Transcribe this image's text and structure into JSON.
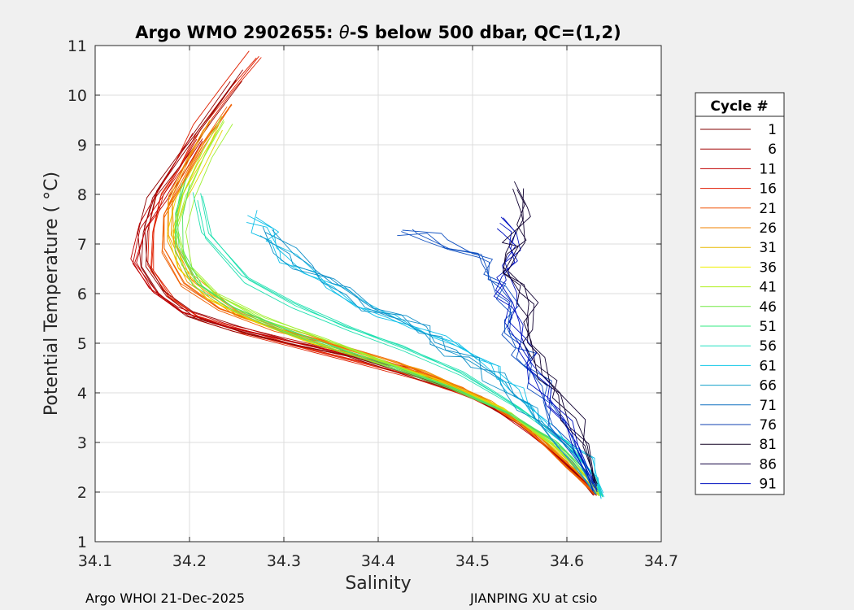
{
  "chart_data": {
    "type": "line",
    "title_prefix": "Argo WMO 2902655: ",
    "title_theta": "θ",
    "title_suffix": "-S below 500 dbar,  QC=(1,2)",
    "xlabel": "Salinity",
    "ylabel": "Potential Temperature ( °C)",
    "xlim": [
      34.1,
      34.7
    ],
    "ylim": [
      1,
      11
    ],
    "xticks": [
      34.1,
      34.2,
      34.3,
      34.4,
      34.5,
      34.6,
      34.7
    ],
    "yticks": [
      1,
      2,
      3,
      4,
      5,
      6,
      7,
      8,
      9,
      10,
      11
    ],
    "grid": true,
    "legend": {
      "title": "Cycle #",
      "position": "right",
      "entries": [
        {
          "label": "1",
          "color": "#800000"
        },
        {
          "label": "6",
          "color": "#a00000"
        },
        {
          "label": "11",
          "color": "#c00000"
        },
        {
          "label": "16",
          "color": "#e01a00"
        },
        {
          "label": "21",
          "color": "#f05000"
        },
        {
          "label": "26",
          "color": "#f08000"
        },
        {
          "label": "31",
          "color": "#e8b800"
        },
        {
          "label": "36",
          "color": "#f0f000"
        },
        {
          "label": "41",
          "color": "#b0f020"
        },
        {
          "label": "46",
          "color": "#70e840"
        },
        {
          "label": "51",
          "color": "#30e880"
        },
        {
          "label": "56",
          "color": "#20e0c0"
        },
        {
          "label": "61",
          "color": "#10c8e8"
        },
        {
          "label": "66",
          "color": "#10a0c8"
        },
        {
          "label": "71",
          "color": "#1070c0"
        },
        {
          "label": "76",
          "color": "#1040b0"
        },
        {
          "label": "81",
          "color": "#100020"
        },
        {
          "label": "86",
          "color": "#100040"
        },
        {
          "label": "91",
          "color": "#0010c0"
        }
      ]
    },
    "series": [
      {
        "name": "red-warm",
        "color": "#e02000",
        "s": [
          34.27,
          34.24,
          34.21,
          34.19,
          34.17,
          34.16,
          34.16,
          34.18,
          34.21,
          34.26,
          34.32,
          34.38,
          34.44,
          34.5,
          34.56,
          34.6,
          34.63
        ],
        "t": [
          10.8,
          10.1,
          9.3,
          8.6,
          8.0,
          7.3,
          6.5,
          5.9,
          5.5,
          5.2,
          4.9,
          4.6,
          4.3,
          3.9,
          3.3,
          2.6,
          1.95
        ]
      },
      {
        "name": "dark-red",
        "color": "#900000",
        "s": [
          34.25,
          34.22,
          34.19,
          34.16,
          34.15,
          34.15,
          34.17,
          34.2,
          34.25,
          34.31,
          34.37,
          34.43,
          34.5,
          34.56,
          34.6,
          34.63
        ],
        "t": [
          10.4,
          9.6,
          8.8,
          8.0,
          7.3,
          6.6,
          6.0,
          5.6,
          5.3,
          5.0,
          4.75,
          4.4,
          3.95,
          3.3,
          2.55,
          1.95
        ]
      },
      {
        "name": "red",
        "color": "#c00000",
        "s": [
          34.21,
          34.19,
          34.17,
          34.15,
          34.14,
          34.16,
          34.19,
          34.24,
          34.3,
          34.37,
          34.44,
          34.51,
          34.56,
          34.61,
          34.63
        ],
        "t": [
          9.2,
          8.6,
          8.0,
          7.4,
          6.7,
          6.1,
          5.7,
          5.4,
          5.1,
          4.8,
          4.45,
          3.9,
          3.2,
          2.4,
          1.97
        ]
      },
      {
        "name": "orange",
        "color": "#f06000",
        "s": [
          34.24,
          34.21,
          34.19,
          34.17,
          34.17,
          34.19,
          34.23,
          34.29,
          34.35,
          34.42,
          34.49,
          34.55,
          34.6,
          34.63
        ],
        "t": [
          9.8,
          9.0,
          8.3,
          7.6,
          6.9,
          6.2,
          5.7,
          5.3,
          5.0,
          4.6,
          4.1,
          3.4,
          2.5,
          1.96
        ]
      },
      {
        "name": "amber",
        "color": "#f09000",
        "s": [
          34.22,
          34.2,
          34.18,
          34.18,
          34.2,
          34.25,
          34.31,
          34.38,
          34.45,
          34.52,
          34.57,
          34.61,
          34.635
        ],
        "t": [
          9.4,
          8.7,
          7.9,
          7.1,
          6.3,
          5.6,
          5.2,
          4.8,
          4.4,
          3.8,
          3.1,
          2.4,
          1.95
        ]
      },
      {
        "name": "yellow",
        "color": "#e8d000",
        "s": [
          34.23,
          34.21,
          34.19,
          34.18,
          34.19,
          34.22,
          34.27,
          34.33,
          34.4,
          34.47,
          34.53,
          34.58,
          34.62,
          34.635
        ],
        "t": [
          9.3,
          8.6,
          7.9,
          7.2,
          6.5,
          5.9,
          5.4,
          5.0,
          4.6,
          4.2,
          3.7,
          3.0,
          2.3,
          1.93
        ]
      },
      {
        "name": "lime",
        "color": "#a0f030",
        "s": [
          34.24,
          34.22,
          34.2,
          34.19,
          34.2,
          34.23,
          34.28,
          34.34,
          34.41,
          34.48,
          34.54,
          34.59,
          34.62,
          34.636
        ],
        "t": [
          9.5,
          8.8,
          8.0,
          7.3,
          6.6,
          6.0,
          5.5,
          5.1,
          4.6,
          4.1,
          3.6,
          2.9,
          2.3,
          1.92
        ]
      },
      {
        "name": "green",
        "color": "#50e060",
        "s": [
          34.2,
          34.19,
          34.19,
          34.21,
          34.25,
          34.3,
          34.36,
          34.42,
          34.48,
          34.54,
          34.59,
          34.62,
          34.636
        ],
        "t": [
          8.3,
          7.6,
          6.9,
          6.2,
          5.7,
          5.3,
          4.9,
          4.5,
          4.1,
          3.6,
          3.0,
          2.4,
          1.92
        ]
      },
      {
        "name": "teal",
        "color": "#20e0b0",
        "s": [
          34.21,
          34.22,
          34.26,
          34.31,
          34.37,
          34.43,
          34.49,
          34.55,
          34.6,
          34.63,
          34.637
        ],
        "t": [
          8.0,
          7.2,
          6.3,
          5.8,
          5.3,
          4.9,
          4.4,
          3.7,
          3.0,
          2.3,
          1.92
        ]
      },
      {
        "name": "cyan",
        "color": "#10c0e8",
        "s": [
          34.27,
          34.29,
          34.33,
          34.38,
          34.44,
          34.5,
          34.53,
          34.56,
          34.6,
          34.63,
          34.637
        ],
        "t": [
          7.6,
          7.0,
          6.4,
          5.8,
          5.3,
          4.8,
          4.3,
          3.7,
          3.0,
          2.3,
          1.92
        ]
      },
      {
        "name": "steel",
        "color": "#1090c8",
        "s": [
          34.28,
          34.32,
          34.37,
          34.42,
          34.46,
          34.5,
          34.54,
          34.57,
          34.61,
          34.63
        ],
        "t": [
          7.2,
          6.5,
          6.0,
          5.5,
          5.0,
          4.6,
          4.0,
          3.4,
          2.6,
          2.05
        ]
      },
      {
        "name": "blue",
        "color": "#1050c0",
        "s": [
          34.43,
          34.48,
          34.52,
          34.53,
          34.54,
          34.55,
          34.56,
          34.58,
          34.61,
          34.63
        ],
        "t": [
          7.3,
          7.0,
          6.6,
          6.1,
          5.5,
          5.0,
          4.5,
          3.8,
          2.8,
          2.1
        ]
      },
      {
        "name": "navy",
        "color": "#0010c0",
        "s": [
          34.53,
          34.54,
          34.53,
          34.54,
          34.55,
          34.56,
          34.58,
          34.61,
          34.63
        ],
        "t": [
          7.4,
          6.9,
          6.3,
          5.7,
          5.1,
          4.5,
          3.8,
          2.9,
          2.1
        ]
      },
      {
        "name": "black-blue",
        "color": "#100030",
        "s": [
          34.55,
          34.55,
          34.54,
          34.55,
          34.56,
          34.57,
          34.59,
          34.62,
          34.63
        ],
        "t": [
          8.1,
          7.4,
          6.8,
          6.1,
          5.4,
          4.7,
          3.9,
          2.9,
          2.2
        ]
      }
    ]
  },
  "footer": {
    "left": "Argo WHOI 21-Dec-2025",
    "right": "JIANPING XU at csio"
  }
}
